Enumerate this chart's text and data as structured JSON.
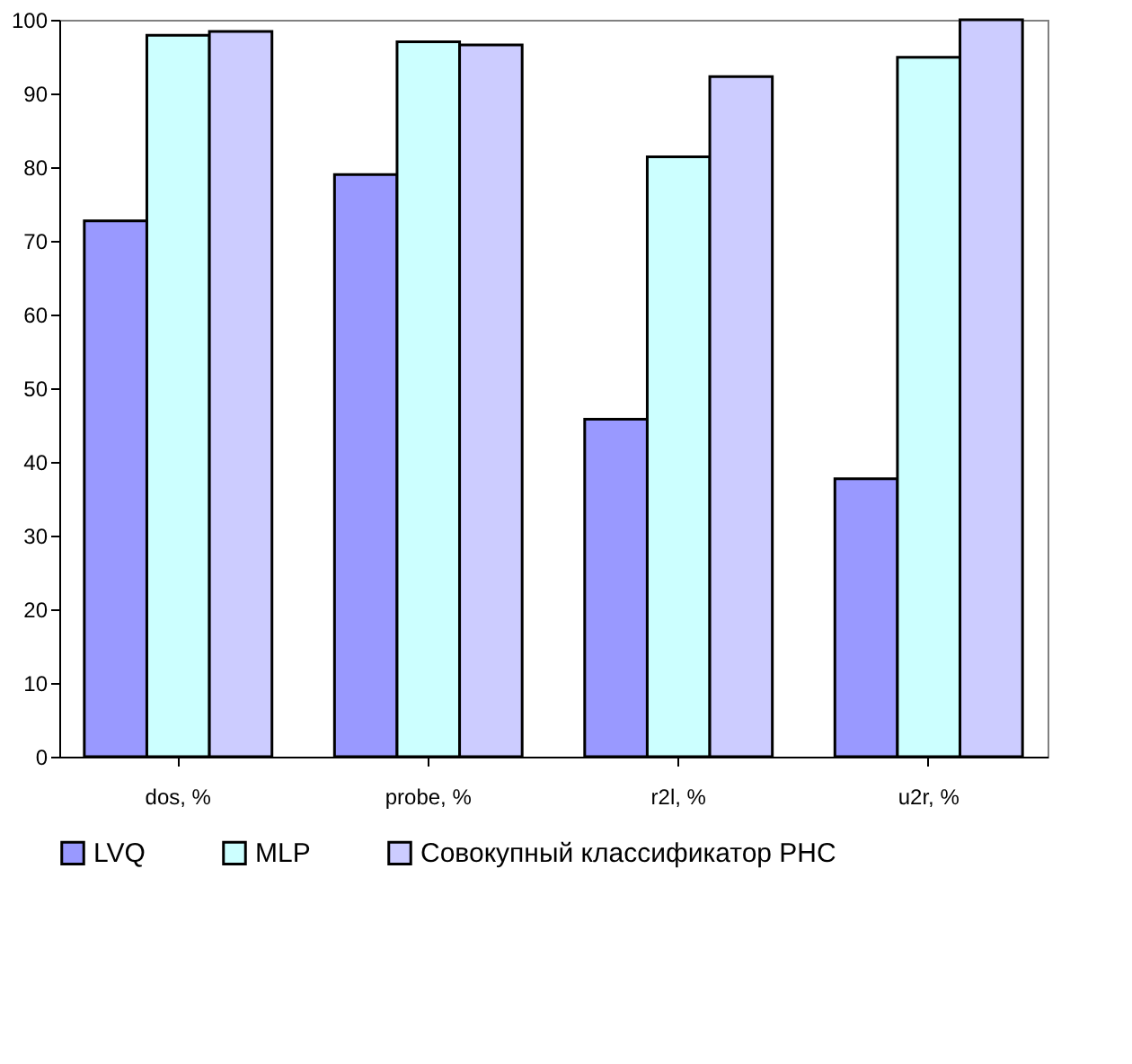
{
  "chart_data": {
    "type": "bar",
    "categories": [
      "dos, %",
      "probe, %",
      "r2l, %",
      "u2r, %"
    ],
    "series": [
      {
        "name": "LVQ",
        "color": "#9999ff",
        "values": [
          72.7,
          79,
          45.8,
          37.7
        ]
      },
      {
        "name": "MLP",
        "color": "#ccffff",
        "values": [
          97.9,
          97,
          81.4,
          94.9
        ]
      },
      {
        "name": "Совокупный классификатор РНС",
        "color": "#ccccff",
        "values": [
          98.4,
          96.6,
          92.3,
          100
        ]
      }
    ],
    "ylim": [
      0,
      100
    ],
    "yticks": [
      0,
      10,
      20,
      30,
      40,
      50,
      60,
      70,
      80,
      90,
      100
    ],
    "grid": false,
    "legend": "bottom"
  }
}
